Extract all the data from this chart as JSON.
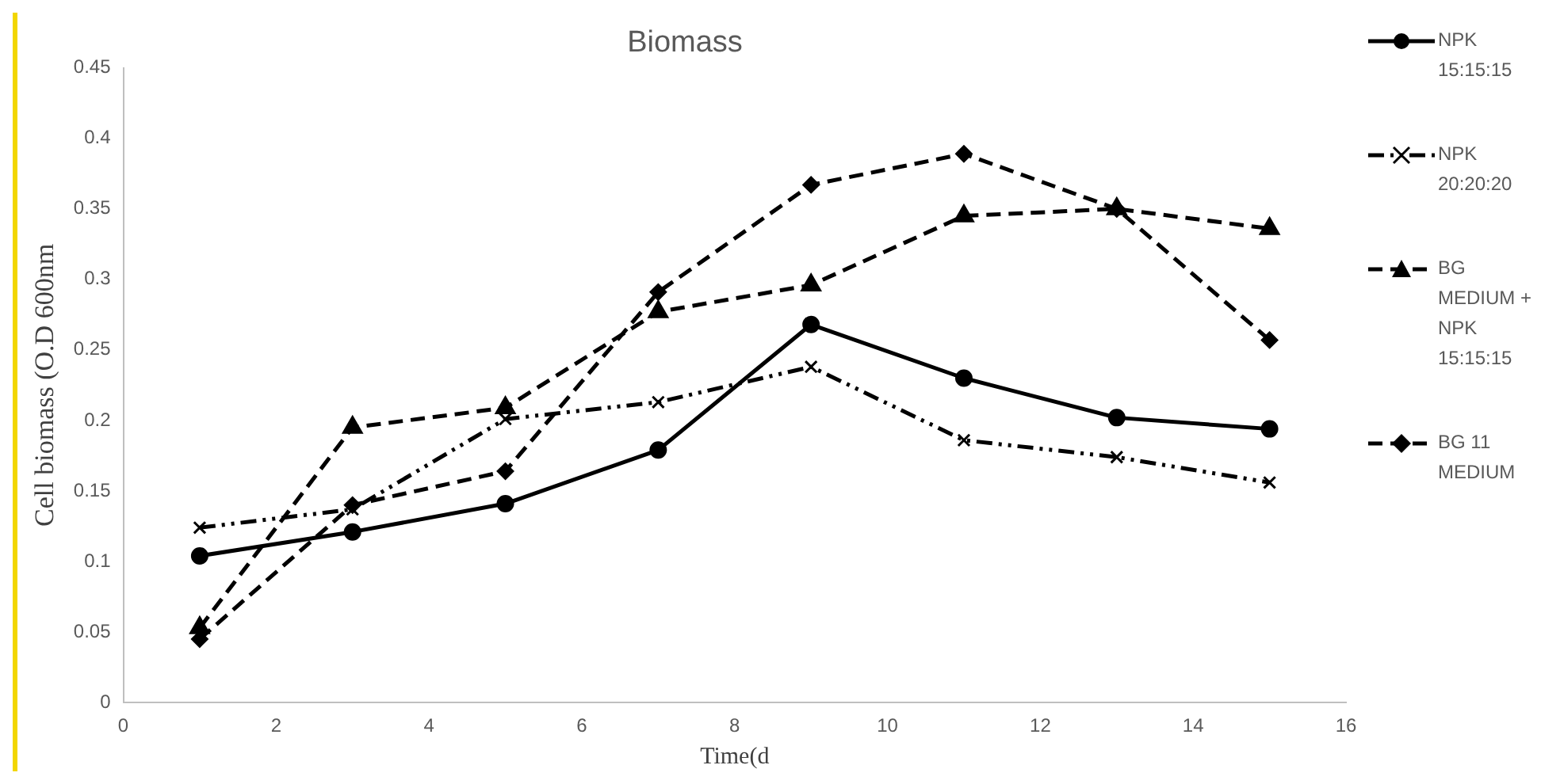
{
  "chart_data": {
    "type": "line",
    "title": "Biomass",
    "xlabel": "Time(d",
    "ylabel": "Cell biomass (O.D 600nm",
    "x": [
      1,
      3,
      5,
      7,
      9,
      11,
      13,
      15
    ],
    "series": [
      {
        "name": "NPK 15:15:15",
        "color": "#000000",
        "marker": "circle",
        "line_style": "solid",
        "values": [
          0.104,
          0.121,
          0.141,
          0.179,
          0.268,
          0.23,
          0.202,
          0.194
        ]
      },
      {
        "name": "NPK 20:20:20",
        "color": "#000000",
        "marker": "cross",
        "line_style": "dotted",
        "values": [
          0.124,
          0.137,
          0.201,
          0.213,
          0.238,
          0.186,
          0.174,
          0.156
        ]
      },
      {
        "name": "BG MEDIUM + NPK 15:15:15",
        "color": "#000000",
        "marker": "triangle",
        "line_style": "dashed",
        "values": [
          0.053,
          0.195,
          0.209,
          0.277,
          0.296,
          0.345,
          0.35,
          0.336
        ]
      },
      {
        "name": "BG 11 MEDIUM",
        "color": "#000000",
        "marker": "diamond",
        "line_style": "dashed",
        "values": [
          0.045,
          0.14,
          0.164,
          0.291,
          0.367,
          0.389,
          0.35,
          0.257
        ]
      }
    ],
    "xlim": [
      0,
      16
    ],
    "xticks": [
      0,
      2,
      4,
      6,
      8,
      10,
      12,
      14,
      16
    ],
    "ylim": [
      0,
      0.45
    ],
    "yticks": [
      0,
      0.05,
      0.1,
      0.15,
      0.2,
      0.25,
      0.3,
      0.35,
      0.4,
      0.45
    ],
    "grid": false,
    "legend": "right"
  }
}
